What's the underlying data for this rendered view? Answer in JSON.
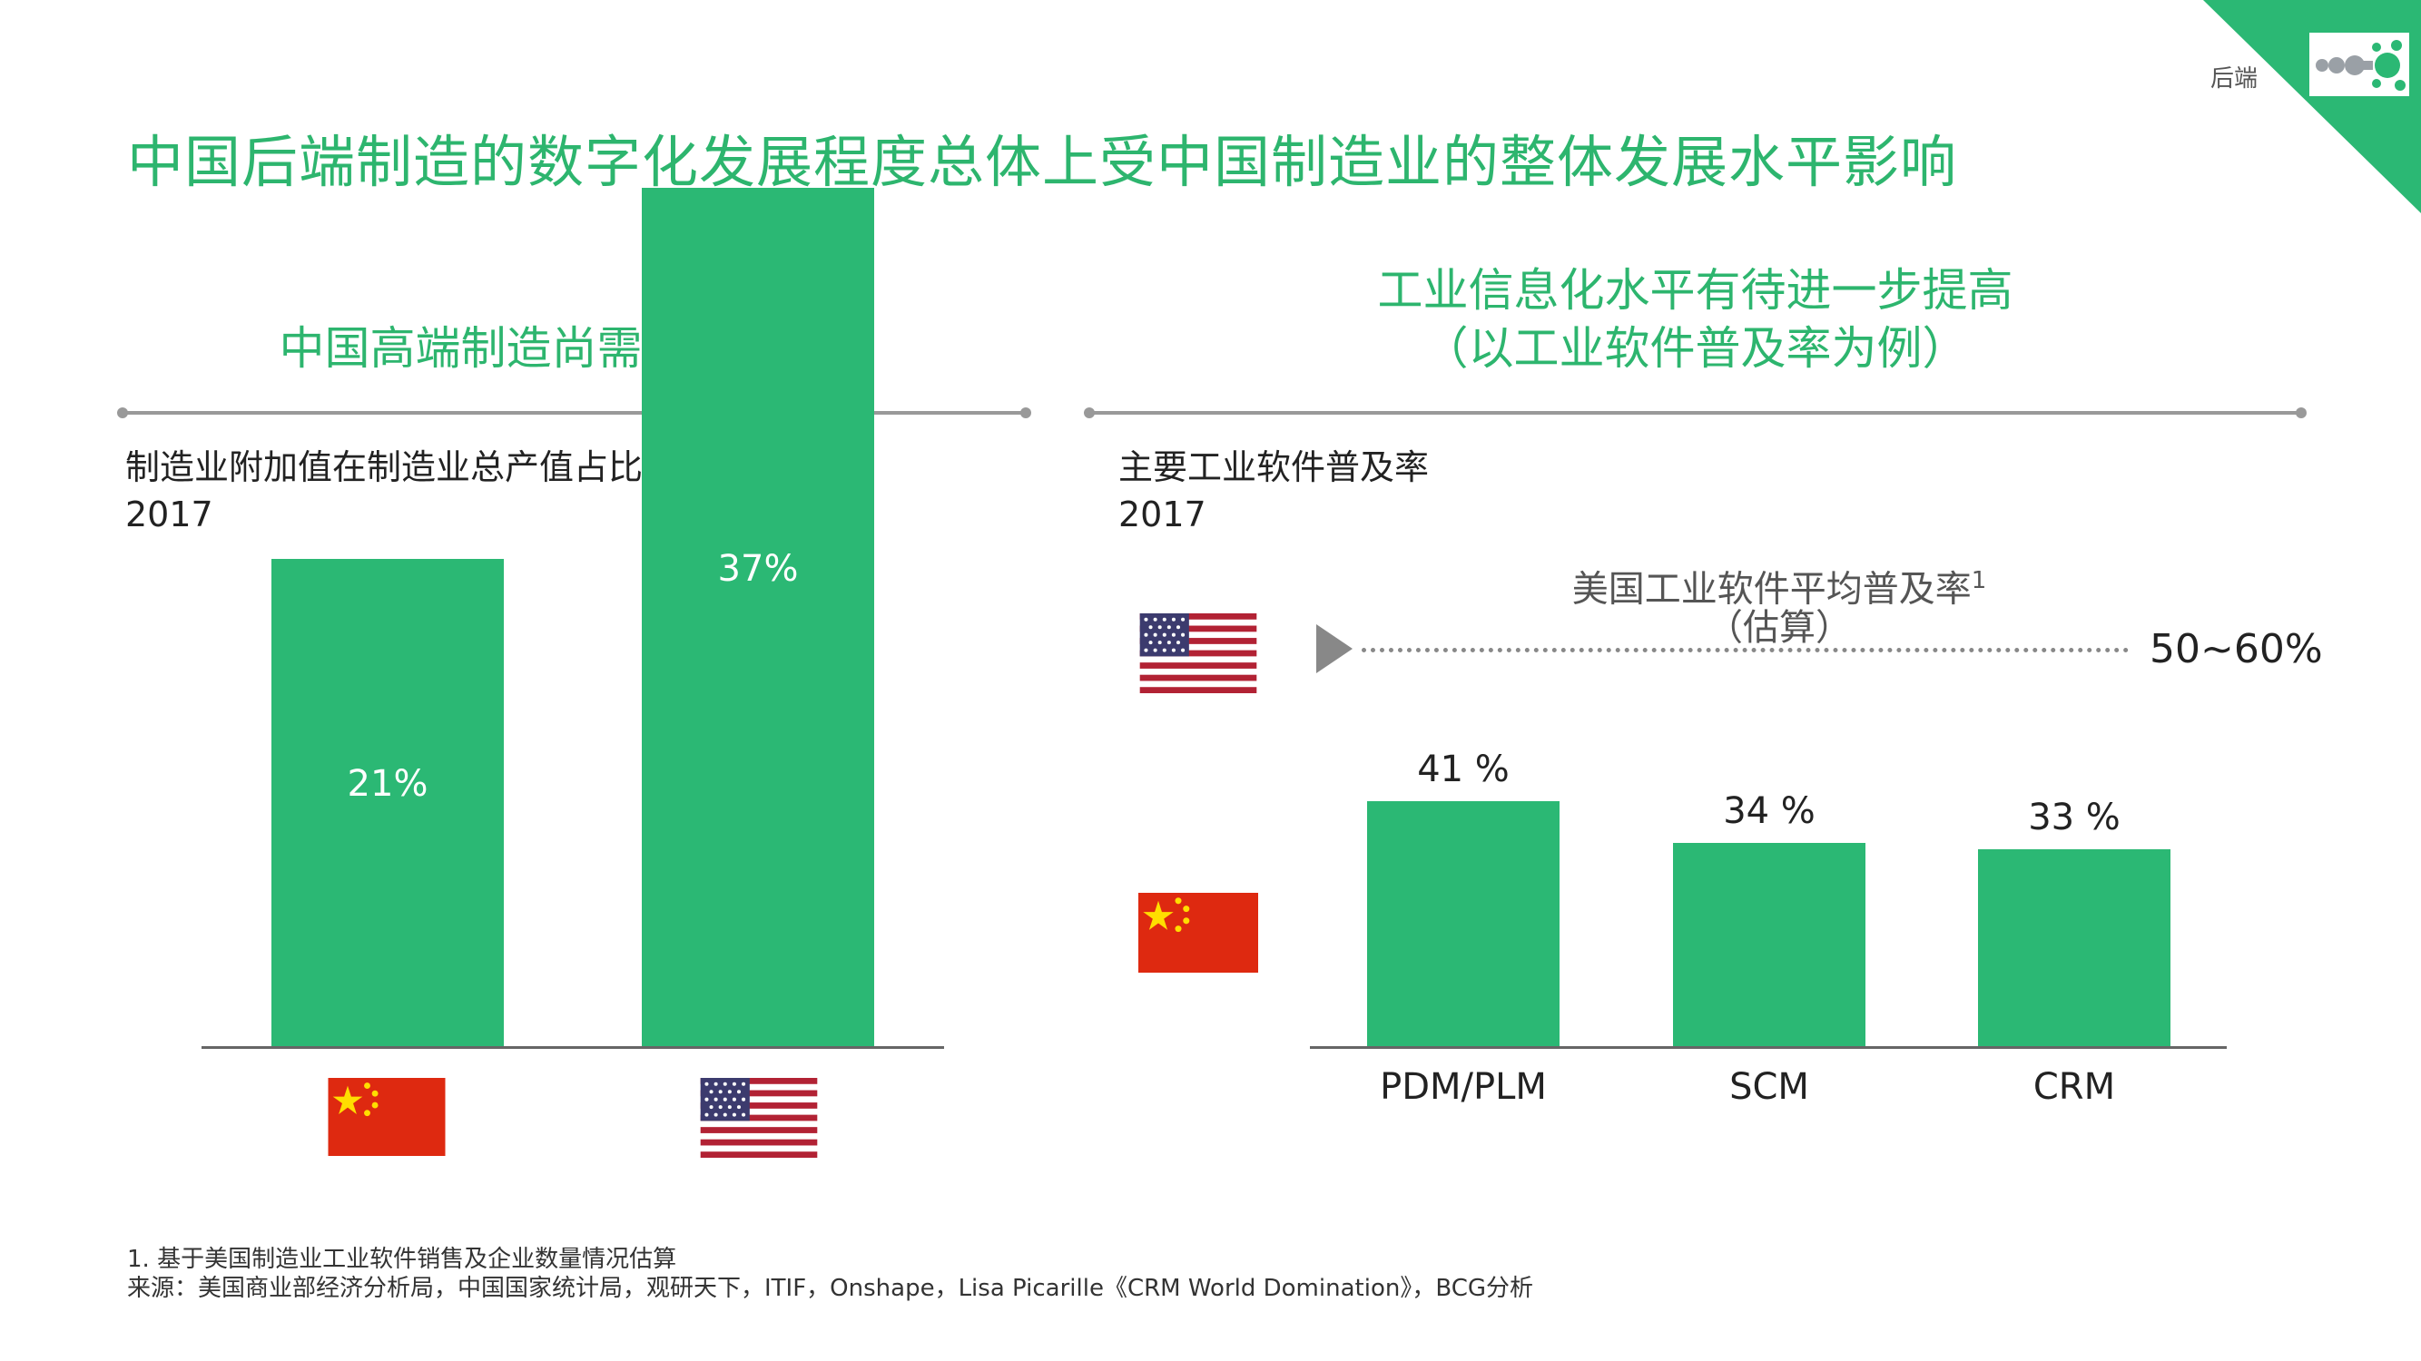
{
  "header": {
    "section_label": "后端",
    "title": "中国后端制造的数字化发展程度总体上受中国制造业的整体发展水平影响"
  },
  "left_panel": {
    "subtitle": "中国高端制造尚需进一步发展",
    "chart_title": "制造业附加值在制造业总产值占比",
    "chart_year": "2017"
  },
  "right_panel": {
    "subtitle_line1": "工业信息化水平有待进一步提高",
    "subtitle_line2": "（以工业软件普及率为例）",
    "chart_title": "主要工业软件普及率",
    "chart_year": "2017",
    "us_average": {
      "label_line1": "美国工业软件平均普及率",
      "footnote_mark": "1",
      "label_line2": "（估算）",
      "value": "50~60%"
    }
  },
  "chart_data": [
    {
      "type": "bar",
      "title": "制造业附加值在制造业总产值占比",
      "subtitle": "2017",
      "categories": [
        "China",
        "United States"
      ],
      "category_flags": [
        "china-flag",
        "us-flag"
      ],
      "values": [
        21,
        37
      ],
      "value_labels": [
        "21%",
        "37%"
      ],
      "unit": "%",
      "ylim": [
        0,
        40
      ],
      "grid": false
    },
    {
      "type": "bar",
      "title": "主要工业软件普及率",
      "subtitle": "2017",
      "categories": [
        "PDM/PLM",
        "SCM",
        "CRM"
      ],
      "values": [
        41,
        34,
        33
      ],
      "value_labels": [
        "41 %",
        "34 %",
        "33 %"
      ],
      "unit": "%",
      "ylim": [
        0,
        60
      ],
      "reference": {
        "label": "美国工业软件平均普及率¹（估算）",
        "value_text": "50~60%",
        "range": [
          50,
          60
        ]
      },
      "grid": false
    }
  ],
  "footer": {
    "note": "1. 基于美国制造业工业软件销售及企业数量情况估算",
    "source": "来源：美国商业部经济分析局，中国国家统计局，观研天下，ITIF，Onshape，Lisa Picarille《CRM World Domination》，BCG分析"
  },
  "colors": {
    "accent": "#2db56e",
    "bar": "#2bb874",
    "axis": "#666666"
  }
}
